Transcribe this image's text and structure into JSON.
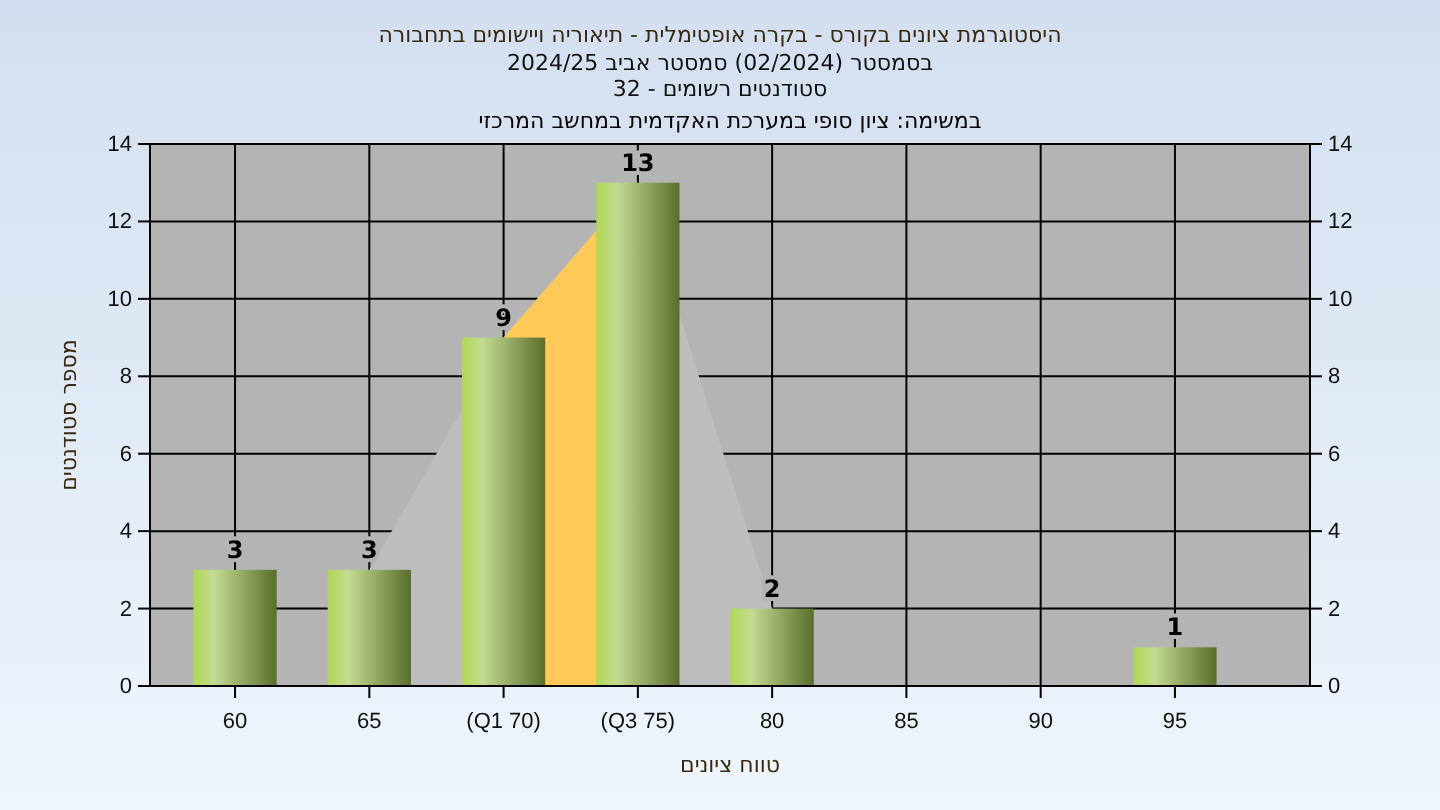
{
  "chart_data": {
    "type": "bar",
    "title": "היסטוגרמת ציונים בקורס - בקרה אופטימלית - תיאוריה ויישומים בתחבורה",
    "subtitle": "בסמסטר  (02/2024)  סמסטר אביב 2024/25\nסטודנטים רשומים - 32",
    "xlabel": "טווח ציונים",
    "ylabel": "מספר סטודנטים",
    "annotations": [
      "במשימה: ציון סופי במערכת האקדמית במחשב המרכזי"
    ],
    "categories": [
      "60",
      "65",
      "(Q1 70)",
      "(Q3 75)",
      "80",
      "85",
      "90",
      "95"
    ],
    "series": [
      {
        "type": "area",
        "color": "#bdbdbd",
        "values": [
          null,
          3,
          9,
          13,
          2,
          null,
          null,
          null
        ]
      },
      {
        "type": "area",
        "color": "#fec957",
        "values": [
          null,
          null,
          9,
          13,
          null,
          null,
          null,
          null
        ]
      },
      {
        "color": "#9cc24a",
        "values": [
          3,
          3,
          9,
          13,
          2,
          0,
          0,
          1
        ],
        "value_labels": [
          "3",
          "3",
          "9",
          "13",
          "2",
          null,
          null,
          "1"
        ]
      }
    ],
    "ylim": [
      0,
      14
    ],
    "yticks": [
      0,
      2,
      4,
      6,
      8,
      10,
      12,
      14
    ],
    "y2lim": [
      0,
      14
    ],
    "y2ticks": [
      0,
      2,
      4,
      6,
      8,
      10,
      12,
      14
    ],
    "grid": true
  }
}
